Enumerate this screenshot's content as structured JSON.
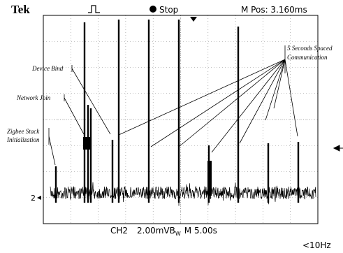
{
  "header": {
    "brand": "Tek",
    "state": "Stop",
    "position": "M Pos: 3.160ms"
  },
  "footer": {
    "channel": "CH2",
    "scale": "2.00mV",
    "bw": "B",
    "bw_sub": "W",
    "timebase": "M 5.00s",
    "trigger_freq": "<10Hz"
  },
  "ground_marker": "2",
  "annotations": {
    "spaced": [
      "5 Seconds Spaced",
      "Communication"
    ],
    "device_bind": "Device Bind",
    "network_join": "Network Join",
    "zigbee": [
      "Zigbee Stack",
      "Initialization"
    ]
  }
}
